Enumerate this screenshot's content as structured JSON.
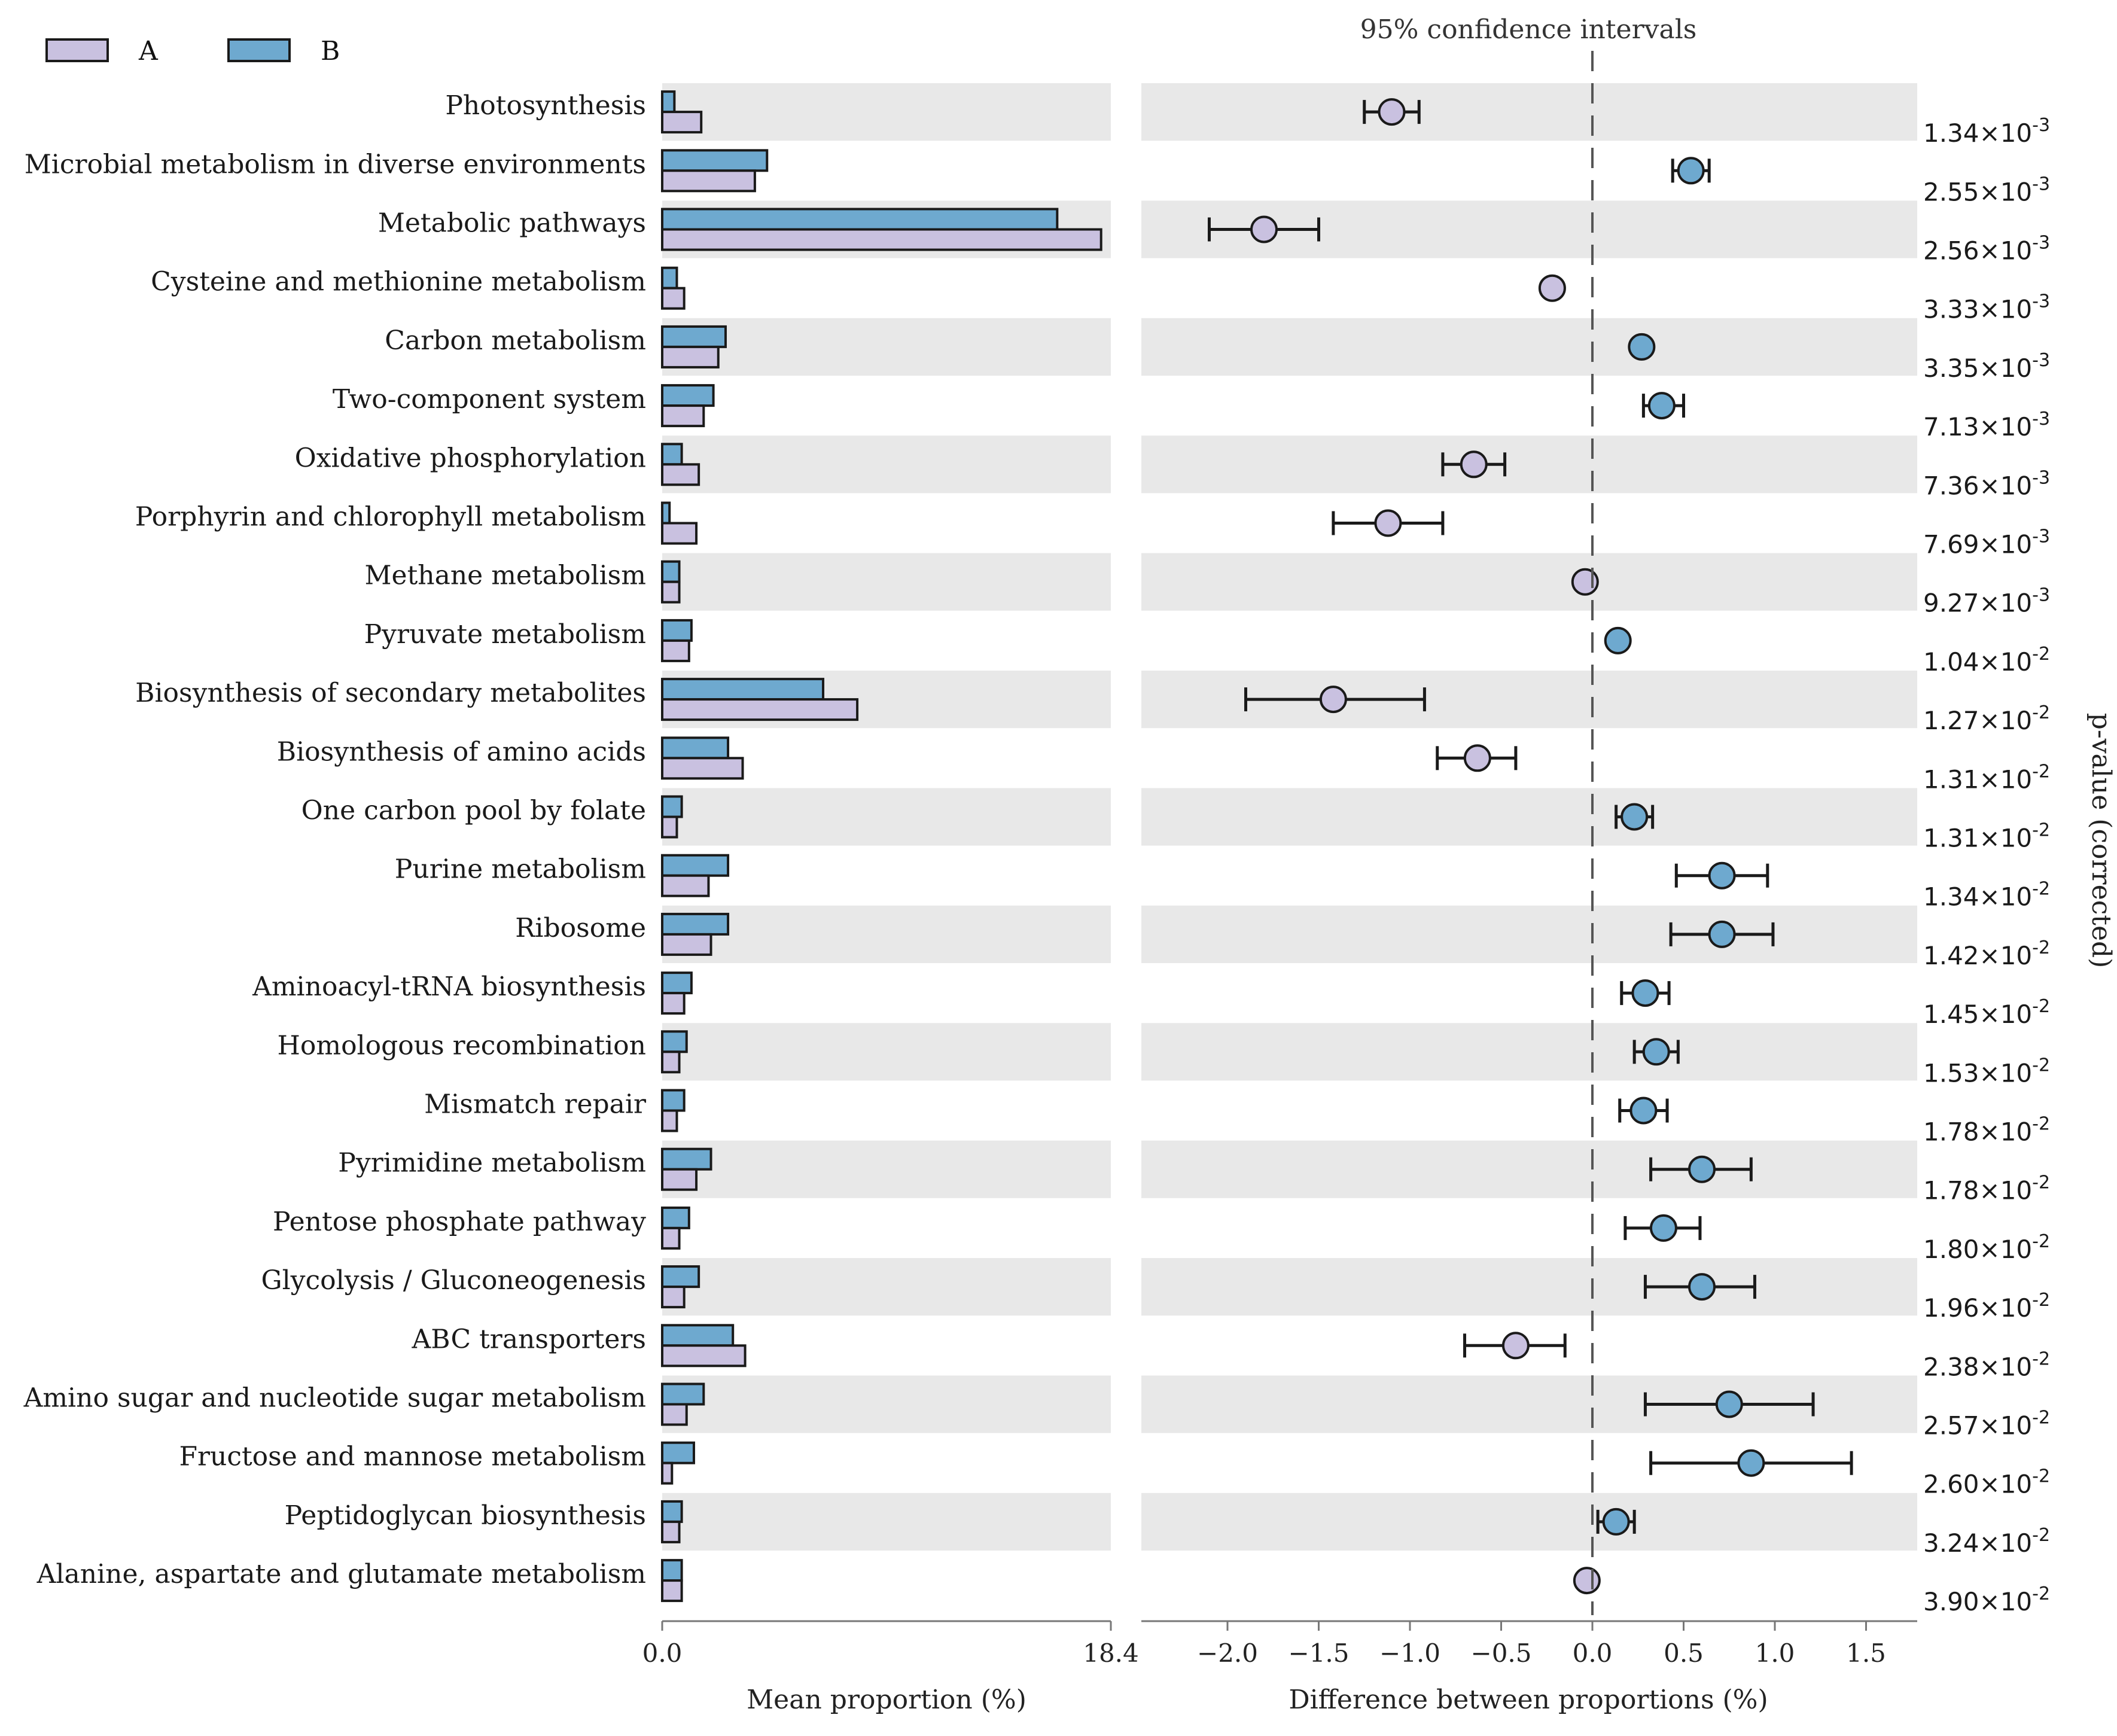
{
  "chart_data": {
    "type": "extended_error_bar",
    "legend": [
      {
        "name": "A",
        "color": "#c9c1e0"
      },
      {
        "name": "B",
        "color": "#6ea9cf"
      }
    ],
    "ci_title": "95% confidence intervals",
    "left_xlabel": "Mean proportion (%)",
    "left_xticks": [
      "0.0",
      "18.4"
    ],
    "left_xlim": [
      0,
      18.4
    ],
    "right_xlabel": "Difference between proportions (%)",
    "right_xticks": [
      "−2.0",
      "−1.5",
      "−1.0",
      "−0.5",
      "0.0",
      "0.5",
      "1.0",
      "1.5"
    ],
    "right_tick_values": [
      -2.0,
      -1.5,
      -1.0,
      -0.5,
      0.0,
      0.5,
      1.0,
      1.5
    ],
    "right_xlim": [
      -2.45,
      1.75
    ],
    "pvalue_label": "p-value (corrected)",
    "rows": [
      {
        "label": "Photosynthesis",
        "a": 1.6,
        "b": 0.5,
        "diff": -1.1,
        "ci": [
          -1.25,
          -0.95
        ],
        "p_mant": "1.34",
        "p_exp": "-3"
      },
      {
        "label": "Microbial metabolism in diverse environments",
        "a": 3.8,
        "b": 4.3,
        "diff": 0.54,
        "ci": [
          0.44,
          0.64
        ],
        "p_mant": "2.55",
        "p_exp": "-3"
      },
      {
        "label": "Metabolic pathways",
        "a": 18.0,
        "b": 16.2,
        "diff": -1.8,
        "ci": [
          -2.1,
          -1.5
        ],
        "p_mant": "2.56",
        "p_exp": "-3"
      },
      {
        "label": "Cysteine and methionine metabolism",
        "a": 0.9,
        "b": 0.6,
        "diff": -0.22,
        "ci": [
          -0.22,
          -0.22
        ],
        "p_mant": "3.33",
        "p_exp": "-3"
      },
      {
        "label": "Carbon metabolism",
        "a": 2.3,
        "b": 2.6,
        "diff": 0.27,
        "ci": [
          0.27,
          0.27
        ],
        "p_mant": "3.35",
        "p_exp": "-3"
      },
      {
        "label": "Two-component system",
        "a": 1.7,
        "b": 2.1,
        "diff": 0.38,
        "ci": [
          0.28,
          0.5
        ],
        "p_mant": "7.13",
        "p_exp": "-3"
      },
      {
        "label": "Oxidative phosphorylation",
        "a": 1.5,
        "b": 0.8,
        "diff": -0.65,
        "ci": [
          -0.82,
          -0.48
        ],
        "p_mant": "7.36",
        "p_exp": "-3"
      },
      {
        "label": "Porphyrin and chlorophyll metabolism",
        "a": 1.4,
        "b": 0.3,
        "diff": -1.12,
        "ci": [
          -1.42,
          -0.82
        ],
        "p_mant": "7.69",
        "p_exp": "-3"
      },
      {
        "label": "Methane metabolism",
        "a": 0.7,
        "b": 0.7,
        "diff": -0.04,
        "ci": [
          -0.04,
          -0.04
        ],
        "p_mant": "9.27",
        "p_exp": "-3"
      },
      {
        "label": "Pyruvate metabolism",
        "a": 1.1,
        "b": 1.2,
        "diff": 0.14,
        "ci": [
          0.14,
          0.14
        ],
        "p_mant": "1.04",
        "p_exp": "-2"
      },
      {
        "label": "Biosynthesis of secondary metabolites",
        "a": 8.0,
        "b": 6.6,
        "diff": -1.42,
        "ci": [
          -1.9,
          -0.92
        ],
        "p_mant": "1.27",
        "p_exp": "-2"
      },
      {
        "label": "Biosynthesis of amino acids",
        "a": 3.3,
        "b": 2.7,
        "diff": -0.63,
        "ci": [
          -0.85,
          -0.42
        ],
        "p_mant": "1.31",
        "p_exp": "-2"
      },
      {
        "label": "One carbon pool by folate",
        "a": 0.6,
        "b": 0.8,
        "diff": 0.23,
        "ci": [
          0.13,
          0.33
        ],
        "p_mant": "1.31",
        "p_exp": "-2"
      },
      {
        "label": "Purine metabolism",
        "a": 1.9,
        "b": 2.7,
        "diff": 0.71,
        "ci": [
          0.46,
          0.96
        ],
        "p_mant": "1.34",
        "p_exp": "-2"
      },
      {
        "label": "Ribosome",
        "a": 2.0,
        "b": 2.7,
        "diff": 0.71,
        "ci": [
          0.43,
          0.99
        ],
        "p_mant": "1.42",
        "p_exp": "-2"
      },
      {
        "label": "Aminoacyl-tRNA biosynthesis",
        "a": 0.9,
        "b": 1.2,
        "diff": 0.29,
        "ci": [
          0.16,
          0.42
        ],
        "p_mant": "1.45",
        "p_exp": "-2"
      },
      {
        "label": "Homologous recombination",
        "a": 0.7,
        "b": 1.0,
        "diff": 0.35,
        "ci": [
          0.23,
          0.47
        ],
        "p_mant": "1.53",
        "p_exp": "-2"
      },
      {
        "label": "Mismatch repair",
        "a": 0.6,
        "b": 0.9,
        "diff": 0.28,
        "ci": [
          0.15,
          0.41
        ],
        "p_mant": "1.78",
        "p_exp": "-2"
      },
      {
        "label": "Pyrimidine metabolism",
        "a": 1.4,
        "b": 2.0,
        "diff": 0.6,
        "ci": [
          0.32,
          0.87
        ],
        "p_mant": "1.78",
        "p_exp": "-2"
      },
      {
        "label": "Pentose phosphate pathway",
        "a": 0.7,
        "b": 1.1,
        "diff": 0.39,
        "ci": [
          0.18,
          0.59
        ],
        "p_mant": "1.80",
        "p_exp": "-2"
      },
      {
        "label": "Glycolysis / Gluconeogenesis",
        "a": 0.9,
        "b": 1.5,
        "diff": 0.6,
        "ci": [
          0.29,
          0.89
        ],
        "p_mant": "1.96",
        "p_exp": "-2"
      },
      {
        "label": "ABC transporters",
        "a": 3.4,
        "b": 2.9,
        "diff": -0.42,
        "ci": [
          -0.7,
          -0.15
        ],
        "p_mant": "2.38",
        "p_exp": "-2"
      },
      {
        "label": "Amino sugar and nucleotide sugar metabolism",
        "a": 1.0,
        "b": 1.7,
        "diff": 0.75,
        "ci": [
          0.29,
          1.21
        ],
        "p_mant": "2.57",
        "p_exp": "-2"
      },
      {
        "label": "Fructose and mannose metabolism",
        "a": 0.4,
        "b": 1.3,
        "diff": 0.87,
        "ci": [
          0.32,
          1.42
        ],
        "p_mant": "2.60",
        "p_exp": "-2"
      },
      {
        "label": "Peptidoglycan biosynthesis",
        "a": 0.7,
        "b": 0.8,
        "diff": 0.13,
        "ci": [
          0.03,
          0.23
        ],
        "p_mant": "3.24",
        "p_exp": "-2"
      },
      {
        "label": "Alanine, aspartate and glutamate metabolism",
        "a": 0.8,
        "b": 0.8,
        "diff": -0.03,
        "ci": [
          -0.03,
          -0.03
        ],
        "p_mant": "3.90",
        "p_exp": "-2"
      }
    ]
  }
}
